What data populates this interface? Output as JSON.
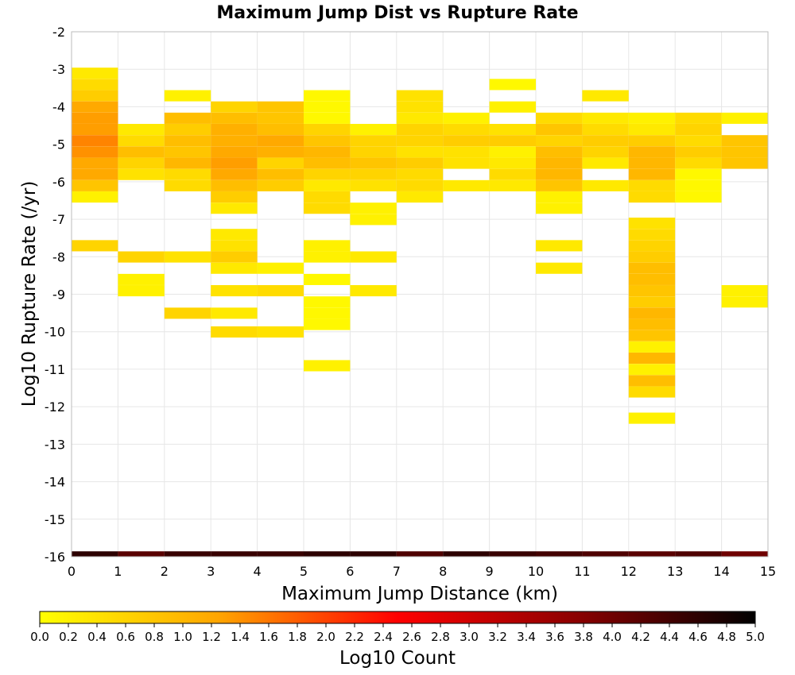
{
  "chart_data": {
    "type": "heatmap",
    "title": "Maximum Jump Dist vs Rupture Rate",
    "xlabel": "Maximum Jump Distance (km)",
    "ylabel": "Log10 Rupture Rate (/yr)",
    "xlim": [
      0,
      15
    ],
    "ylim": [
      -16,
      -2
    ],
    "x_ticks": [
      "0",
      "1",
      "2",
      "3",
      "4",
      "5",
      "6",
      "7",
      "8",
      "9",
      "10",
      "11",
      "12",
      "13",
      "14",
      "15"
    ],
    "y_ticks": [
      "-2",
      "-3",
      "-4",
      "-5",
      "-6",
      "-7",
      "-8",
      "-9",
      "-10",
      "-11",
      "-12",
      "-13",
      "-14",
      "-15",
      "-16"
    ],
    "bin_height": 0.2857,
    "grid": true,
    "colorbar": {
      "label": "Log10 Count",
      "range": [
        0,
        5
      ],
      "ticks": [
        "0.0",
        "0.2",
        "0.4",
        "0.6",
        "0.8",
        "1.0",
        "1.2",
        "1.4",
        "1.6",
        "1.8",
        "2.0",
        "2.2",
        "2.4",
        "2.6",
        "2.8",
        "3.0",
        "3.2",
        "3.4",
        "3.6",
        "3.8",
        "4.0",
        "4.2",
        "4.4",
        "4.6",
        "4.8",
        "5.0"
      ],
      "colors": [
        "#ffff00",
        "#ffa500",
        "#ff0000",
        "#8b0000",
        "#000000"
      ]
    },
    "cells": [
      [
        0,
        -3.1,
        0.3
      ],
      [
        0,
        -3.4,
        0.5
      ],
      [
        0,
        -3.7,
        0.7
      ],
      [
        0,
        -4.0,
        1.2
      ],
      [
        0,
        -4.3,
        1.3
      ],
      [
        0,
        -4.6,
        1.3
      ],
      [
        0,
        -4.9,
        1.5
      ],
      [
        0,
        -5.2,
        1.4
      ],
      [
        0,
        -5.5,
        1.2
      ],
      [
        0,
        -5.8,
        1.2
      ],
      [
        0,
        -6.1,
        0.8
      ],
      [
        0,
        -6.4,
        0.2
      ],
      [
        0,
        -7.7,
        0.6
      ],
      [
        1,
        -4.6,
        0.3
      ],
      [
        1,
        -4.9,
        0.5
      ],
      [
        1,
        -5.2,
        0.9
      ],
      [
        1,
        -5.5,
        0.6
      ],
      [
        1,
        -5.8,
        0.4
      ],
      [
        1,
        -8.0,
        0.6
      ],
      [
        1,
        -8.6,
        0.2
      ],
      [
        1,
        -8.9,
        0.2
      ],
      [
        2,
        -3.7,
        0.2
      ],
      [
        2,
        -4.3,
        0.9
      ],
      [
        2,
        -4.6,
        0.7
      ],
      [
        2,
        -4.9,
        0.9
      ],
      [
        2,
        -5.2,
        0.8
      ],
      [
        2,
        -5.5,
        1.0
      ],
      [
        2,
        -5.8,
        0.5
      ],
      [
        2,
        -6.1,
        0.5
      ],
      [
        2,
        -8.0,
        0.4
      ],
      [
        2,
        -9.5,
        0.6
      ],
      [
        3,
        -4.0,
        0.6
      ],
      [
        3,
        -4.3,
        0.9
      ],
      [
        3,
        -4.6,
        1.1
      ],
      [
        3,
        -4.9,
        1.1
      ],
      [
        3,
        -5.2,
        1.2
      ],
      [
        3,
        -5.5,
        1.3
      ],
      [
        3,
        -5.8,
        1.2
      ],
      [
        3,
        -6.1,
        0.9
      ],
      [
        3,
        -6.4,
        0.7
      ],
      [
        3,
        -6.7,
        0.3
      ],
      [
        3,
        -7.4,
        0.3
      ],
      [
        3,
        -7.7,
        0.4
      ],
      [
        3,
        -8.0,
        0.7
      ],
      [
        3,
        -8.3,
        0.3
      ],
      [
        3,
        -8.9,
        0.4
      ],
      [
        3,
        -9.5,
        0.3
      ],
      [
        3,
        -10.0,
        0.5
      ],
      [
        4,
        -4.0,
        0.8
      ],
      [
        4,
        -4.3,
        0.8
      ],
      [
        4,
        -4.6,
        0.9
      ],
      [
        4,
        -4.9,
        1.2
      ],
      [
        4,
        -5.2,
        1.1
      ],
      [
        4,
        -5.5,
        0.6
      ],
      [
        4,
        -5.8,
        0.9
      ],
      [
        4,
        -6.1,
        0.7
      ],
      [
        4,
        -8.3,
        0.2
      ],
      [
        4,
        -8.9,
        0.5
      ],
      [
        4,
        -10.0,
        0.4
      ],
      [
        5,
        -3.7,
        0.1
      ],
      [
        5,
        -4.0,
        0.1
      ],
      [
        5,
        -4.3,
        0.1
      ],
      [
        5,
        -4.6,
        0.6
      ],
      [
        5,
        -4.9,
        0.8
      ],
      [
        5,
        -5.2,
        1.0
      ],
      [
        5,
        -5.5,
        0.9
      ],
      [
        5,
        -5.8,
        0.6
      ],
      [
        5,
        -6.1,
        0.3
      ],
      [
        5,
        -6.4,
        0.5
      ],
      [
        5,
        -6.7,
        0.5
      ],
      [
        5,
        -7.7,
        0.2
      ],
      [
        5,
        -8.0,
        0.2
      ],
      [
        5,
        -8.6,
        0.1
      ],
      [
        5,
        -9.2,
        0.1
      ],
      [
        5,
        -9.5,
        0.1
      ],
      [
        5,
        -9.8,
        0.1
      ],
      [
        5,
        -10.9,
        0.2
      ],
      [
        6,
        -4.6,
        0.2
      ],
      [
        6,
        -4.9,
        0.6
      ],
      [
        6,
        -5.2,
        0.6
      ],
      [
        6,
        -5.5,
        0.8
      ],
      [
        6,
        -5.8,
        0.6
      ],
      [
        6,
        -6.1,
        0.4
      ],
      [
        6,
        -6.7,
        0.2
      ],
      [
        6,
        -7.0,
        0.2
      ],
      [
        6,
        -8.0,
        0.3
      ],
      [
        6,
        -8.9,
        0.3
      ],
      [
        7,
        -3.7,
        0.4
      ],
      [
        7,
        -4.0,
        0.4
      ],
      [
        7,
        -4.3,
        0.3
      ],
      [
        7,
        -4.6,
        0.6
      ],
      [
        7,
        -4.9,
        0.6
      ],
      [
        7,
        -5.2,
        0.4
      ],
      [
        7,
        -5.5,
        0.7
      ],
      [
        7,
        -5.8,
        0.5
      ],
      [
        7,
        -6.1,
        0.5
      ],
      [
        7,
        -6.4,
        0.3
      ],
      [
        8,
        -4.3,
        0.2
      ],
      [
        8,
        -4.6,
        0.5
      ],
      [
        8,
        -4.9,
        0.7
      ],
      [
        8,
        -5.2,
        0.4
      ],
      [
        8,
        -5.5,
        0.4
      ],
      [
        8,
        -6.1,
        0.3
      ],
      [
        9,
        -3.4,
        0.1
      ],
      [
        9,
        -4.0,
        0.2
      ],
      [
        9,
        -4.6,
        0.4
      ],
      [
        9,
        -4.9,
        0.7
      ],
      [
        9,
        -5.2,
        0.2
      ],
      [
        9,
        -5.5,
        0.3
      ],
      [
        9,
        -5.8,
        0.5
      ],
      [
        9,
        -6.1,
        0.3
      ],
      [
        10,
        -4.3,
        0.5
      ],
      [
        10,
        -4.6,
        0.8
      ],
      [
        10,
        -4.9,
        0.6
      ],
      [
        10,
        -5.2,
        0.9
      ],
      [
        10,
        -5.5,
        1.0
      ],
      [
        10,
        -5.8,
        1.0
      ],
      [
        10,
        -6.1,
        0.8
      ],
      [
        10,
        -6.4,
        0.2
      ],
      [
        10,
        -6.7,
        0.2
      ],
      [
        10,
        -7.7,
        0.3
      ],
      [
        10,
        -8.3,
        0.3
      ],
      [
        11,
        -3.7,
        0.3
      ],
      [
        11,
        -4.3,
        0.3
      ],
      [
        11,
        -4.6,
        0.5
      ],
      [
        11,
        -4.9,
        0.7
      ],
      [
        11,
        -5.2,
        0.6
      ],
      [
        11,
        -5.5,
        0.3
      ],
      [
        11,
        -6.1,
        0.3
      ],
      [
        12,
        -4.3,
        0.2
      ],
      [
        12,
        -4.6,
        0.3
      ],
      [
        12,
        -4.9,
        0.7
      ],
      [
        12,
        -5.2,
        1.0
      ],
      [
        12,
        -5.5,
        1.0
      ],
      [
        12,
        -5.8,
        1.0
      ],
      [
        12,
        -6.1,
        0.5
      ],
      [
        12,
        -6.4,
        0.5
      ],
      [
        12,
        -7.1,
        0.4
      ],
      [
        12,
        -7.4,
        0.5
      ],
      [
        12,
        -7.7,
        0.6
      ],
      [
        12,
        -8.0,
        0.7
      ],
      [
        12,
        -8.3,
        0.9
      ],
      [
        12,
        -8.6,
        0.9
      ],
      [
        12,
        -8.9,
        0.8
      ],
      [
        12,
        -9.2,
        0.7
      ],
      [
        12,
        -9.5,
        1.0
      ],
      [
        12,
        -9.8,
        0.9
      ],
      [
        12,
        -10.1,
        0.8
      ],
      [
        12,
        -10.4,
        0.2
      ],
      [
        12,
        -10.7,
        1.0
      ],
      [
        12,
        -11.0,
        0.2
      ],
      [
        12,
        -11.3,
        0.9
      ],
      [
        12,
        -11.6,
        0.5
      ],
      [
        12,
        -12.3,
        0.2
      ],
      [
        13,
        -4.3,
        0.5
      ],
      [
        13,
        -4.6,
        0.6
      ],
      [
        13,
        -4.9,
        0.5
      ],
      [
        13,
        -5.2,
        0.7
      ],
      [
        13,
        -5.5,
        0.5
      ],
      [
        13,
        -5.8,
        0.1
      ],
      [
        13,
        -6.1,
        0.1
      ],
      [
        13,
        -6.4,
        0.1
      ],
      [
        14,
        -4.3,
        0.2
      ],
      [
        14,
        -4.9,
        0.8
      ],
      [
        14,
        -5.2,
        0.8
      ],
      [
        14,
        -5.5,
        0.8
      ],
      [
        14,
        -8.9,
        0.2
      ],
      [
        14,
        -9.2,
        0.2
      ]
    ],
    "bottom_row_values": [
      4.6,
      4.2,
      4.5,
      4.5,
      4.5,
      4.6,
      4.6,
      4.3,
      4.6,
      4.5,
      4.4,
      4.3,
      4.2,
      4.3,
      4.0
    ]
  }
}
